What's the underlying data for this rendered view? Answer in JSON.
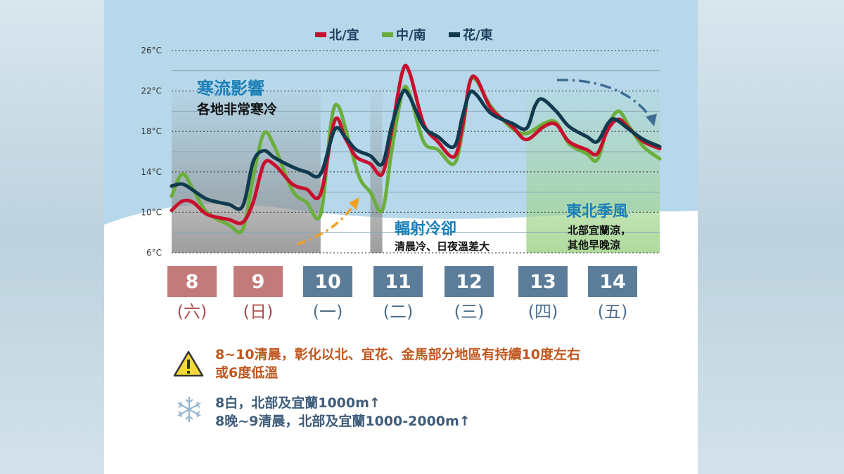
{
  "colors": {
    "north": "#c8102e",
    "central_south": "#6aae3c",
    "east": "#103a4e",
    "weekend": "#c27a7a",
    "weekday": "#5c7d99",
    "warning_text": "#c0561e",
    "snow_text": "#3e5c7a",
    "annotation_blue": "#1a7fb8",
    "arrow_orange": "#f0a020",
    "arrow_blue": "#3d6d94"
  },
  "chart_data": {
    "type": "line",
    "ylabel": "",
    "ylim": [
      6,
      26
    ],
    "yticks": [
      "26°C",
      "22°C",
      "18°C",
      "14°C",
      "10°C",
      "6°C"
    ],
    "x_unit": "day",
    "xlim": [
      8,
      15
    ],
    "grid": true,
    "legend_position": "top",
    "series": [
      {
        "name": "北/宜",
        "color": "#c8102e",
        "points": [
          [
            8.0,
            10.2
          ],
          [
            8.15,
            11.1
          ],
          [
            8.3,
            11.0
          ],
          [
            8.5,
            9.8
          ],
          [
            8.8,
            9.3
          ],
          [
            9.0,
            9.0
          ],
          [
            9.15,
            11.0
          ],
          [
            9.3,
            14.8
          ],
          [
            9.45,
            14.7
          ],
          [
            9.7,
            12.8
          ],
          [
            9.9,
            12.3
          ],
          [
            10.1,
            11.8
          ],
          [
            10.3,
            19.1
          ],
          [
            10.45,
            17.3
          ],
          [
            10.6,
            15.5
          ],
          [
            10.8,
            14.8
          ],
          [
            10.97,
            13.8
          ],
          [
            11.1,
            18.0
          ],
          [
            11.25,
            23.8
          ],
          [
            11.35,
            23.9
          ],
          [
            11.55,
            18.8
          ],
          [
            11.75,
            17.0
          ],
          [
            11.98,
            15.5
          ],
          [
            12.1,
            18.5
          ],
          [
            12.2,
            22.8
          ],
          [
            12.3,
            23.2
          ],
          [
            12.5,
            20.3
          ],
          [
            12.8,
            18.5
          ],
          [
            13.0,
            17.2
          ],
          [
            13.25,
            18.5
          ],
          [
            13.42,
            18.7
          ],
          [
            13.6,
            17.0
          ],
          [
            13.85,
            16.2
          ],
          [
            14.0,
            15.8
          ],
          [
            14.15,
            18.2
          ],
          [
            14.3,
            19.2
          ],
          [
            14.45,
            18.3
          ],
          [
            14.65,
            17.0
          ],
          [
            14.88,
            16.3
          ]
        ]
      },
      {
        "name": "中/南",
        "color": "#6aae3c",
        "points": [
          [
            8.0,
            11.6
          ],
          [
            8.15,
            13.8
          ],
          [
            8.3,
            12.3
          ],
          [
            8.5,
            10.0
          ],
          [
            8.8,
            8.8
          ],
          [
            9.0,
            8.3
          ],
          [
            9.15,
            13.5
          ],
          [
            9.3,
            17.8
          ],
          [
            9.45,
            16.5
          ],
          [
            9.7,
            12.2
          ],
          [
            9.9,
            11.0
          ],
          [
            10.1,
            9.8
          ],
          [
            10.25,
            19.0
          ],
          [
            10.35,
            20.5
          ],
          [
            10.5,
            17.0
          ],
          [
            10.65,
            13.4
          ],
          [
            10.8,
            12.0
          ],
          [
            10.97,
            10.2
          ],
          [
            11.1,
            16.0
          ],
          [
            11.25,
            21.8
          ],
          [
            11.35,
            21.8
          ],
          [
            11.55,
            17.0
          ],
          [
            11.75,
            16.2
          ],
          [
            11.98,
            14.8
          ],
          [
            12.1,
            18.0
          ],
          [
            12.2,
            22.8
          ],
          [
            12.3,
            23.0
          ],
          [
            12.5,
            20.5
          ],
          [
            12.8,
            18.3
          ],
          [
            13.0,
            17.8
          ],
          [
            13.25,
            18.8
          ],
          [
            13.42,
            18.9
          ],
          [
            13.6,
            16.8
          ],
          [
            13.85,
            15.8
          ],
          [
            14.0,
            15.2
          ],
          [
            14.15,
            18.5
          ],
          [
            14.3,
            20.0
          ],
          [
            14.45,
            18.5
          ],
          [
            14.65,
            16.5
          ],
          [
            14.88,
            15.3
          ]
        ]
      },
      {
        "name": "花/東",
        "color": "#103a4e",
        "points": [
          [
            8.0,
            12.6
          ],
          [
            8.15,
            12.8
          ],
          [
            8.3,
            12.2
          ],
          [
            8.5,
            11.3
          ],
          [
            8.8,
            10.8
          ],
          [
            9.0,
            10.6
          ],
          [
            9.15,
            15.0
          ],
          [
            9.3,
            16.1
          ],
          [
            9.45,
            15.4
          ],
          [
            9.7,
            14.5
          ],
          [
            9.9,
            14.0
          ],
          [
            10.1,
            13.8
          ],
          [
            10.3,
            18.2
          ],
          [
            10.45,
            17.4
          ],
          [
            10.6,
            16.2
          ],
          [
            10.8,
            15.6
          ],
          [
            10.97,
            14.8
          ],
          [
            11.1,
            18.5
          ],
          [
            11.25,
            21.8
          ],
          [
            11.35,
            21.5
          ],
          [
            11.55,
            18.5
          ],
          [
            11.75,
            17.5
          ],
          [
            11.98,
            16.5
          ],
          [
            12.1,
            19.5
          ],
          [
            12.2,
            21.8
          ],
          [
            12.3,
            21.6
          ],
          [
            12.5,
            19.8
          ],
          [
            12.8,
            18.8
          ],
          [
            13.0,
            18.3
          ],
          [
            13.12,
            20.5
          ],
          [
            13.22,
            21.2
          ],
          [
            13.42,
            20.0
          ],
          [
            13.6,
            18.5
          ],
          [
            13.85,
            17.5
          ],
          [
            14.0,
            17.0
          ],
          [
            14.15,
            18.8
          ],
          [
            14.25,
            19.2
          ],
          [
            14.45,
            18.2
          ],
          [
            14.65,
            17.2
          ],
          [
            14.88,
            16.5
          ]
        ]
      }
    ],
    "shaded_periods": [
      {
        "name": "cold",
        "from": 8.0,
        "to": 10.1,
        "color": "#8c8c8c"
      },
      {
        "name": "radiative",
        "from": 10.8,
        "to": 10.97,
        "color": "#8c8c8c"
      },
      {
        "name": "monsoon",
        "from": 13.0,
        "to": 14.88,
        "color": "#9fd48a"
      }
    ],
    "days": [
      {
        "day": "8",
        "weekday": "(六)",
        "weekend": true
      },
      {
        "day": "9",
        "weekday": "(日)",
        "weekend": true
      },
      {
        "day": "10",
        "weekday": "(一)",
        "weekend": false
      },
      {
        "day": "11",
        "weekday": "(二)",
        "weekend": false
      },
      {
        "day": "12",
        "weekday": "(三)",
        "weekend": false
      },
      {
        "day": "13",
        "weekday": "(四)",
        "weekend": false
      },
      {
        "day": "14",
        "weekday": "(五)",
        "weekend": false
      }
    ],
    "annotations": {
      "cold_title": "寒流影響",
      "cold_sub": "各地非常寒冷",
      "rad_title": "輻射冷卻",
      "rad_sub": "清晨冷、日夜溫差大",
      "ne_title": "東北季風",
      "ne_sub_1": "北部宜蘭涼，",
      "ne_sub_2": "其他早晚涼"
    }
  },
  "notes": {
    "warning_line_1": "8~10清晨，彰化以北、宜花、金馬部分地區有持續10度左右",
    "warning_line_2": "或6度低溫",
    "snow_line_1": "8白，北部及宜蘭1000m↑",
    "snow_line_2": "8晚~9清晨，北部及宜蘭1000-2000m↑"
  }
}
